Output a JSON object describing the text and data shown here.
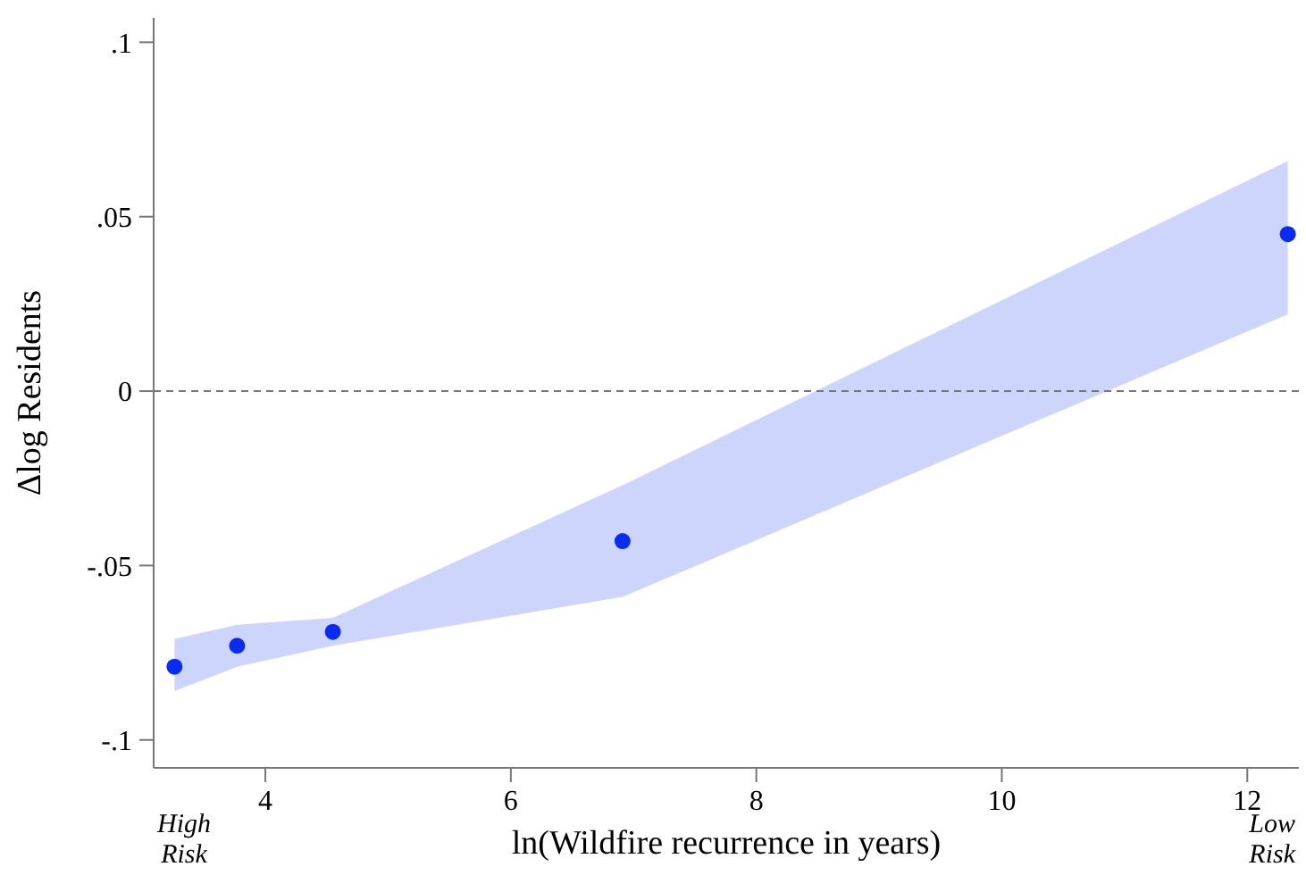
{
  "chart_data": {
    "type": "scatter",
    "xlabel": "ln(Wildfire recurrence in years)",
    "ylabel": "Δlog Residents",
    "x": [
      3.26,
      3.77,
      4.55,
      6.91,
      12.33
    ],
    "series": [
      {
        "color": "#0a2cf0",
        "values": [
          -0.079,
          -0.073,
          -0.069,
          -0.043,
          0.045
        ],
        "lower": [
          -0.086,
          -0.079,
          -0.073,
          -0.059,
          0.022
        ],
        "upper": [
          -0.071,
          -0.067,
          -0.065,
          -0.027,
          0.066
        ]
      }
    ],
    "xlim": [
      3.09,
      12.42
    ],
    "xticks": [
      4,
      6,
      8,
      10,
      12
    ],
    "ylim": [
      -0.108,
      0.107
    ],
    "yticks": [
      {
        "value": -0.1,
        "label": "-.1"
      },
      {
        "value": -0.05,
        "label": "-.05"
      },
      {
        "value": 0,
        "label": "0"
      },
      {
        "value": 0.05,
        "label": ".05"
      },
      {
        "value": 0.1,
        "label": ".1"
      }
    ],
    "ref_lines": [
      {
        "axis": "y",
        "value": 0,
        "color": "#777777",
        "line_style": "dashed"
      }
    ],
    "annotations": [
      "High\nRisk",
      "Low\nRisk"
    ],
    "marker": "circle",
    "grid": false,
    "legend": false
  }
}
